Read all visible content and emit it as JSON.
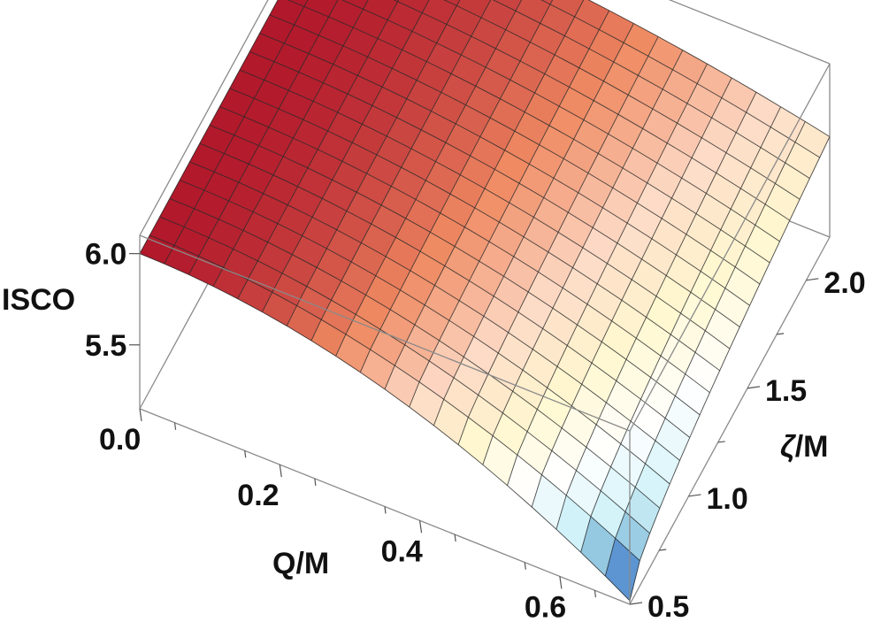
{
  "chart_data": {
    "type": "surface3d",
    "title": "",
    "xlabel": "Q/M",
    "ylabel": "ζ/M",
    "zlabel": "ISCO",
    "xlim": [
      0.0,
      0.7
    ],
    "ylim": [
      0.5,
      2.2
    ],
    "zlim": [
      5.15,
      6.1
    ],
    "x_ticks": [
      "0.0",
      "0.2",
      "0.4",
      "0.6"
    ],
    "y_ticks": [
      "0.5",
      "1.0",
      "1.5",
      "2.0"
    ],
    "z_ticks": [
      "5.5",
      "6.0"
    ],
    "x_tick_values": [
      0.0,
      0.2,
      0.4,
      0.6
    ],
    "y_tick_values": [
      0.5,
      1.0,
      1.5,
      2.0
    ],
    "z_tick_values": [
      5.5,
      6.0
    ],
    "grid_x": [
      0.0,
      0.035,
      0.07,
      0.105,
      0.14,
      0.175,
      0.21,
      0.245,
      0.28,
      0.315,
      0.35,
      0.385,
      0.42,
      0.455,
      0.49,
      0.525,
      0.56,
      0.595,
      0.63,
      0.665,
      0.7
    ],
    "grid_y": [
      0.5,
      0.585,
      0.67,
      0.755,
      0.84,
      0.925,
      1.01,
      1.095,
      1.18,
      1.265,
      1.35,
      1.435,
      1.52,
      1.605,
      1.69,
      1.775,
      1.86,
      1.945,
      2.03,
      2.115,
      2.2
    ],
    "surface_model": {
      "corner_values": [
        {
          "x": 0.0,
          "y": 0.5,
          "z": 6.0
        },
        {
          "x": 0.0,
          "y": 2.2,
          "z": 6.0
        },
        {
          "x": 0.7,
          "y": 0.5,
          "z": 5.17
        },
        {
          "x": 0.7,
          "y": 2.2,
          "z": 5.7
        }
      ]
    },
    "colormap": [
      "#b2182b",
      "#ef8a62",
      "#fddbc7",
      "#fff8d0",
      "#ffffff",
      "#d1f2f9",
      "#67a9cf",
      "#2b3bd9"
    ]
  }
}
